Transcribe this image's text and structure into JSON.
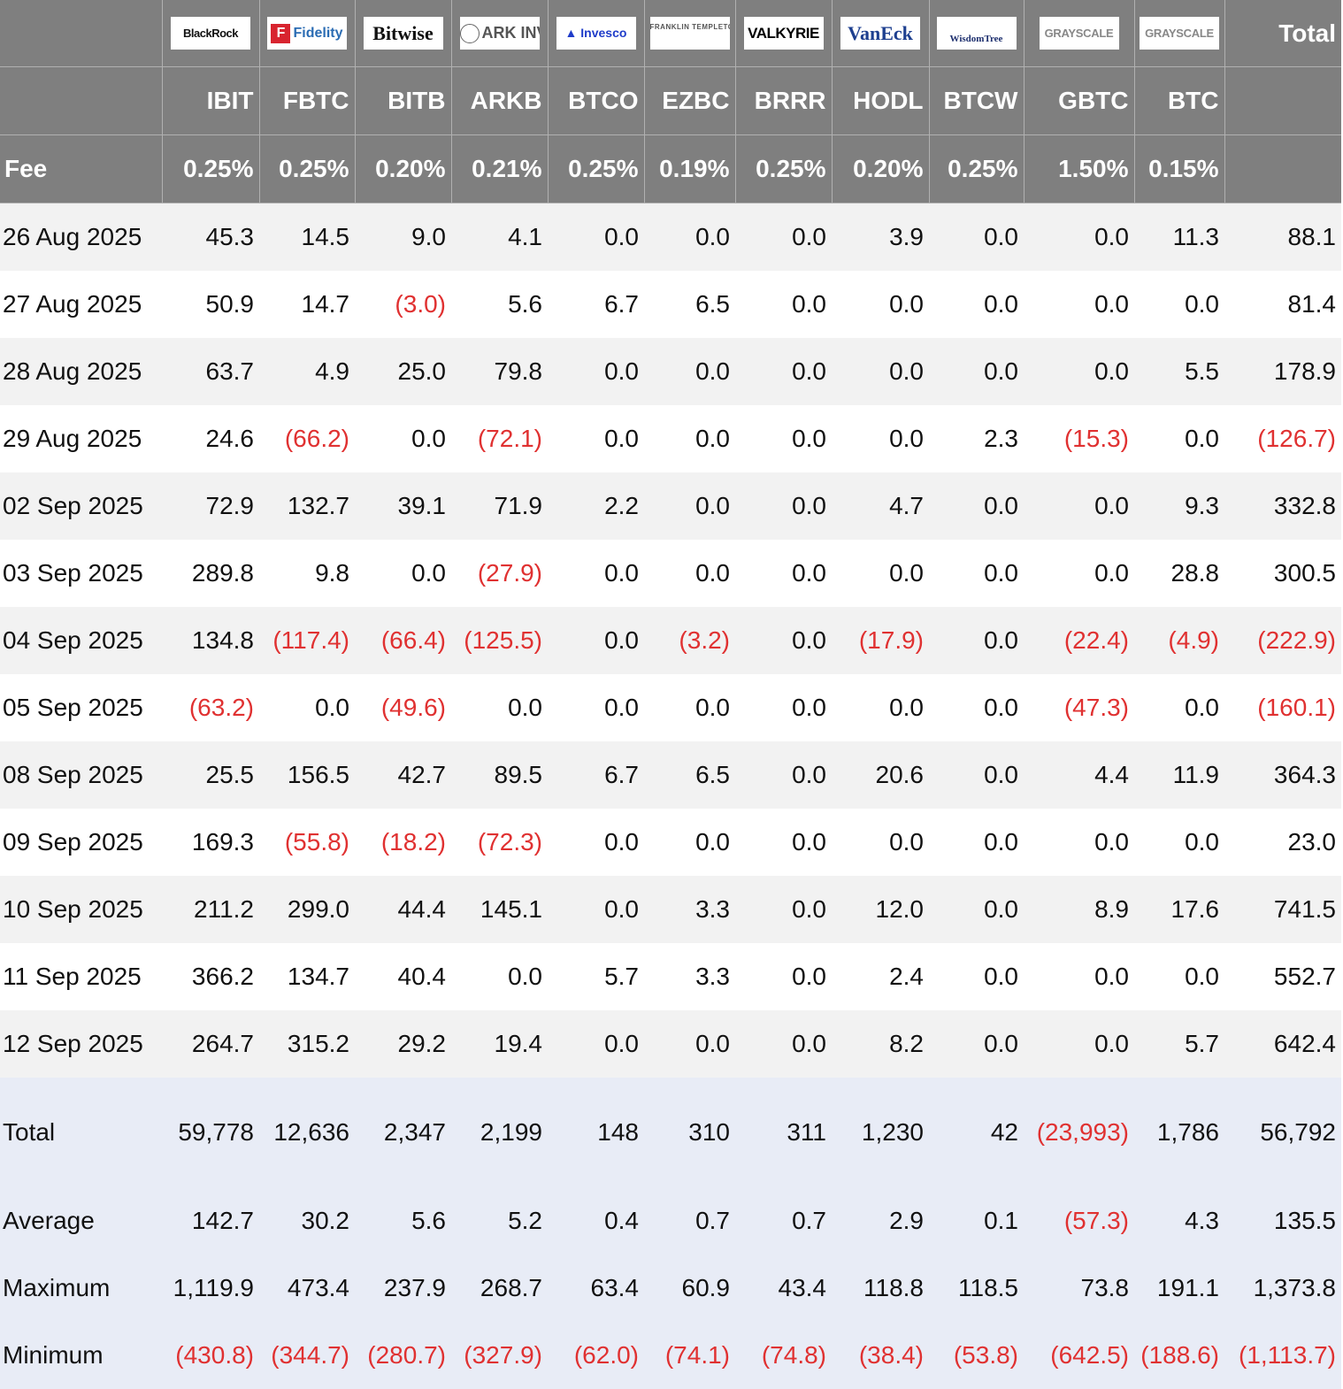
{
  "header": {
    "logos": [
      {
        "fund": "BlackRock",
        "icon": "blackrock-logo"
      },
      {
        "fund": "Fidelity",
        "icon": "fidelity-logo"
      },
      {
        "fund": "Bitwise",
        "icon": "bitwise-logo"
      },
      {
        "fund": "ARK INVEST",
        "icon": "ark-invest-logo"
      },
      {
        "fund": "Invesco",
        "icon": "invesco-logo"
      },
      {
        "fund": "FRANKLIN TEMPLETON",
        "icon": "franklin-templeton-logo"
      },
      {
        "fund": "VALKYRIE",
        "icon": "valkyrie-logo"
      },
      {
        "fund": "VanEck",
        "icon": "vaneck-logo"
      },
      {
        "fund": "WisdomTree",
        "icon": "wisdomtree-logo"
      },
      {
        "fund": "GRAYSCALE",
        "icon": "grayscale-logo"
      },
      {
        "fund": "GRAYSCALE",
        "icon": "grayscale-logo"
      }
    ],
    "total_label": "Total",
    "tickers": [
      "IBIT",
      "FBTC",
      "BITB",
      "ARKB",
      "BTCO",
      "EZBC",
      "BRRR",
      "HODL",
      "BTCW",
      "GBTC",
      "BTC"
    ],
    "fee_label": "Fee",
    "fees": [
      "0.25%",
      "0.25%",
      "0.20%",
      "0.21%",
      "0.25%",
      "0.19%",
      "0.25%",
      "0.20%",
      "0.25%",
      "1.50%",
      "0.15%"
    ]
  },
  "rows": [
    {
      "date": "26 Aug 2025",
      "values": [
        "45.3",
        "14.5",
        "9.0",
        "4.1",
        "0.0",
        "0.0",
        "0.0",
        "3.9",
        "0.0",
        "0.0",
        "11.3",
        "88.1"
      ]
    },
    {
      "date": "27 Aug 2025",
      "values": [
        "50.9",
        "14.7",
        "(3.0)",
        "5.6",
        "6.7",
        "6.5",
        "0.0",
        "0.0",
        "0.0",
        "0.0",
        "0.0",
        "81.4"
      ]
    },
    {
      "date": "28 Aug 2025",
      "values": [
        "63.7",
        "4.9",
        "25.0",
        "79.8",
        "0.0",
        "0.0",
        "0.0",
        "0.0",
        "0.0",
        "0.0",
        "5.5",
        "178.9"
      ]
    },
    {
      "date": "29 Aug 2025",
      "values": [
        "24.6",
        "(66.2)",
        "0.0",
        "(72.1)",
        "0.0",
        "0.0",
        "0.0",
        "0.0",
        "2.3",
        "(15.3)",
        "0.0",
        "(126.7)"
      ]
    },
    {
      "date": "02 Sep 2025",
      "values": [
        "72.9",
        "132.7",
        "39.1",
        "71.9",
        "2.2",
        "0.0",
        "0.0",
        "4.7",
        "0.0",
        "0.0",
        "9.3",
        "332.8"
      ]
    },
    {
      "date": "03 Sep 2025",
      "values": [
        "289.8",
        "9.8",
        "0.0",
        "(27.9)",
        "0.0",
        "0.0",
        "0.0",
        "0.0",
        "0.0",
        "0.0",
        "28.8",
        "300.5"
      ]
    },
    {
      "date": "04 Sep 2025",
      "values": [
        "134.8",
        "(117.4)",
        "(66.4)",
        "(125.5)",
        "0.0",
        "(3.2)",
        "0.0",
        "(17.9)",
        "0.0",
        "(22.4)",
        "(4.9)",
        "(222.9)"
      ]
    },
    {
      "date": "05 Sep 2025",
      "values": [
        "(63.2)",
        "0.0",
        "(49.6)",
        "0.0",
        "0.0",
        "0.0",
        "0.0",
        "0.0",
        "0.0",
        "(47.3)",
        "0.0",
        "(160.1)"
      ]
    },
    {
      "date": "08 Sep 2025",
      "values": [
        "25.5",
        "156.5",
        "42.7",
        "89.5",
        "6.7",
        "6.5",
        "0.0",
        "20.6",
        "0.0",
        "4.4",
        "11.9",
        "364.3"
      ]
    },
    {
      "date": "09 Sep 2025",
      "values": [
        "169.3",
        "(55.8)",
        "(18.2)",
        "(72.3)",
        "0.0",
        "0.0",
        "0.0",
        "0.0",
        "0.0",
        "0.0",
        "0.0",
        "23.0"
      ]
    },
    {
      "date": "10 Sep 2025",
      "values": [
        "211.2",
        "299.0",
        "44.4",
        "145.1",
        "0.0",
        "3.3",
        "0.0",
        "12.0",
        "0.0",
        "8.9",
        "17.6",
        "741.5"
      ]
    },
    {
      "date": "11 Sep 2025",
      "values": [
        "366.2",
        "134.7",
        "40.4",
        "0.0",
        "5.7",
        "3.3",
        "0.0",
        "2.4",
        "0.0",
        "0.0",
        "0.0",
        "552.7"
      ]
    },
    {
      "date": "12 Sep 2025",
      "values": [
        "264.7",
        "315.2",
        "29.2",
        "19.4",
        "0.0",
        "0.0",
        "0.0",
        "8.2",
        "0.0",
        "0.0",
        "5.7",
        "642.4"
      ]
    }
  ],
  "summary": [
    {
      "label": "Total",
      "values": [
        "59,778",
        "12,636",
        "2,347",
        "2,199",
        "148",
        "310",
        "311",
        "1,230",
        "42",
        "(23,993)",
        "1,786",
        "56,792"
      ]
    },
    {
      "label": "Average",
      "values": [
        "142.7",
        "30.2",
        "5.6",
        "5.2",
        "0.4",
        "0.7",
        "0.7",
        "2.9",
        "0.1",
        "(57.3)",
        "4.3",
        "135.5"
      ]
    },
    {
      "label": "Maximum",
      "values": [
        "1,119.9",
        "473.4",
        "237.9",
        "268.7",
        "63.4",
        "60.9",
        "43.4",
        "118.8",
        "118.5",
        "73.8",
        "191.1",
        "1,373.8"
      ]
    },
    {
      "label": "Minimum",
      "values": [
        "(430.8)",
        "(344.7)",
        "(280.7)",
        "(327.9)",
        "(62.0)",
        "(74.1)",
        "(74.8)",
        "(38.4)",
        "(53.8)",
        "(642.5)",
        "(188.6)",
        "(1,113.7)"
      ]
    }
  ],
  "colors": {
    "header_bg": "#7f7f7f",
    "row_odd": "#f2f2f2",
    "row_even": "#ffffff",
    "summary_bg": "#e8ecf6",
    "negative": "#e03131"
  }
}
